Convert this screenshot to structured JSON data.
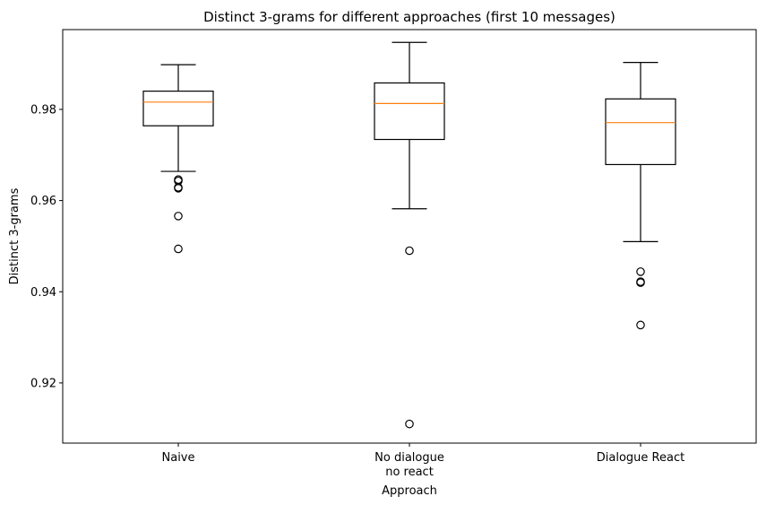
{
  "chart_data": {
    "type": "box",
    "title": "Distinct 3-grams for different approaches (first 10 messages)",
    "xlabel": "Approach",
    "ylabel": "Distinct 3-grams",
    "ylim": [
      0.9068,
      0.9975
    ],
    "yticks": [
      0.92,
      0.94,
      0.96,
      0.98
    ],
    "ytick_labels": [
      "0.92",
      "0.94",
      "0.96",
      "0.98"
    ],
    "grid": false,
    "categories": [
      [
        "Naive"
      ],
      [
        "No dialogue",
        "no react"
      ],
      [
        "Dialogue React"
      ]
    ],
    "boxes": [
      {
        "whisker_low": 0.9664,
        "q1": 0.9764,
        "median": 0.9816,
        "q3": 0.984,
        "whisker_high": 0.9898,
        "outliers": [
          0.9646,
          0.9643,
          0.9629,
          0.9627,
          0.9566,
          0.9494
        ]
      },
      {
        "whisker_low": 0.9582,
        "q1": 0.9734,
        "median": 0.9813,
        "q3": 0.9858,
        "whisker_high": 0.9947,
        "outliers": [
          0.949,
          0.911
        ]
      },
      {
        "whisker_low": 0.951,
        "q1": 0.9679,
        "median": 0.9771,
        "q3": 0.9823,
        "whisker_high": 0.9903,
        "outliers": [
          0.9444,
          0.9422,
          0.942,
          0.9327
        ]
      }
    ],
    "colors": {
      "box": "#000000",
      "median": "#ff7f0e"
    }
  }
}
